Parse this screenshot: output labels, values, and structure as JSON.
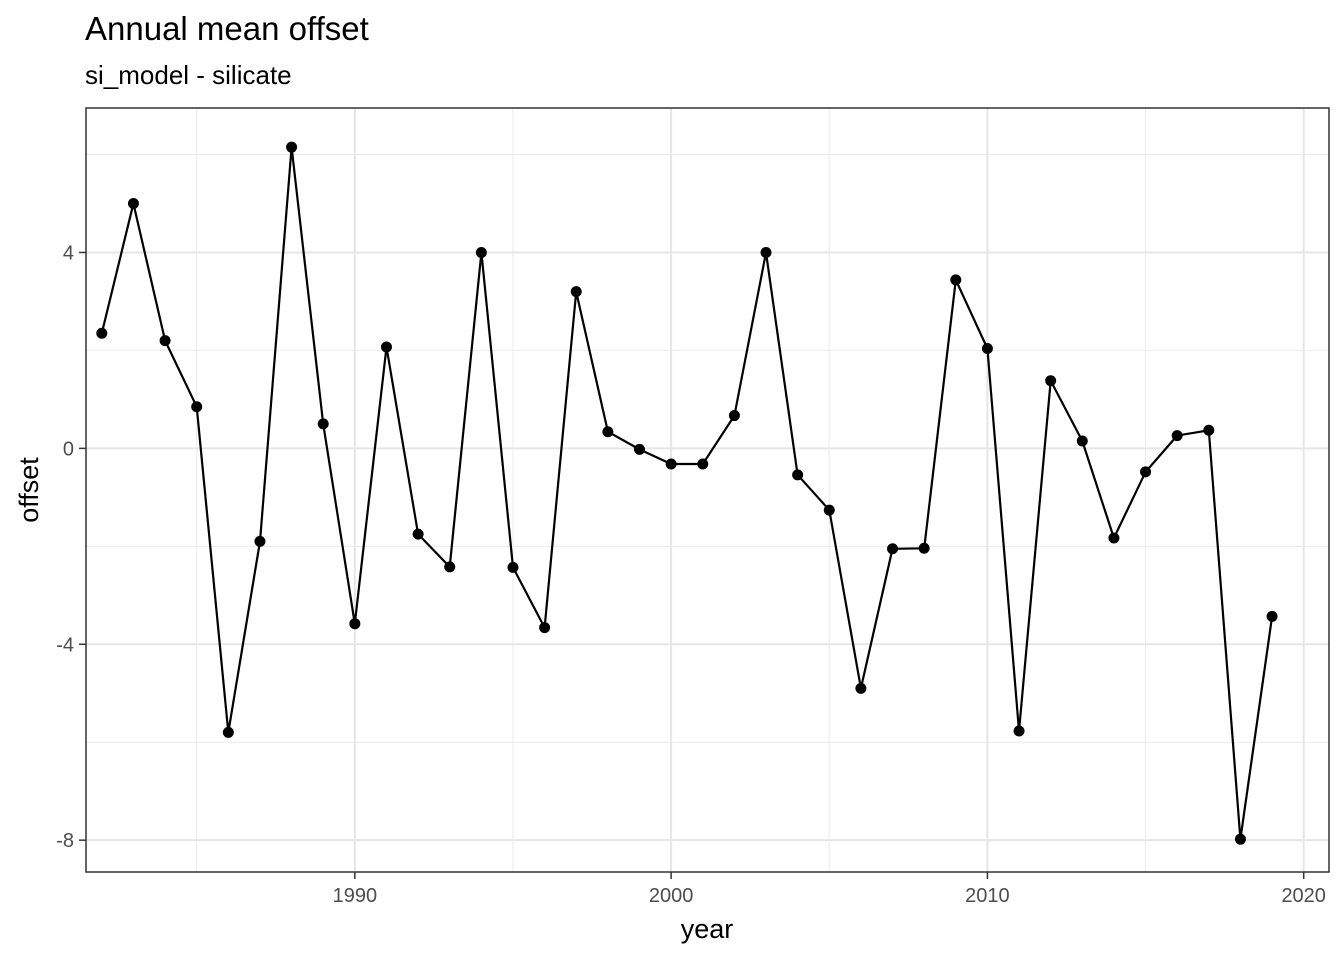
{
  "chart_data": {
    "type": "line",
    "title": "Annual mean offset",
    "subtitle": "si_model - silicate",
    "xlabel": "year",
    "ylabel": "offset",
    "xlim": [
      1981.5,
      2020.8
    ],
    "ylim": [
      -8.65,
      6.95
    ],
    "x_ticks": [
      1990,
      2000,
      2010,
      2020
    ],
    "y_ticks": [
      -8,
      -4,
      0,
      4
    ],
    "grid": true,
    "line_color": "#000000",
    "point_color": "#000000",
    "x": [
      1982,
      1983,
      1984,
      1985,
      1986,
      1987,
      1988,
      1989,
      1990,
      1991,
      1992,
      1993,
      1994,
      1995,
      1996,
      1997,
      1998,
      1999,
      2000,
      2001,
      2002,
      2003,
      2004,
      2005,
      2006,
      2007,
      2008,
      2009,
      2010,
      2011,
      2012,
      2013,
      2014,
      2015,
      2016,
      2017,
      2018,
      2019
    ],
    "values": [
      2.35,
      5.0,
      2.2,
      0.85,
      -5.8,
      -1.9,
      6.15,
      0.5,
      -3.58,
      2.07,
      -1.75,
      -2.42,
      4.0,
      -2.43,
      -3.66,
      3.2,
      0.34,
      -0.02,
      -0.32,
      -0.32,
      0.67,
      4.0,
      -0.54,
      -1.26,
      -4.9,
      -2.05,
      -2.04,
      3.44,
      2.04,
      -5.77,
      1.38,
      0.15,
      -1.83,
      -0.48,
      0.26,
      0.37,
      -7.98,
      -3.43
    ]
  }
}
